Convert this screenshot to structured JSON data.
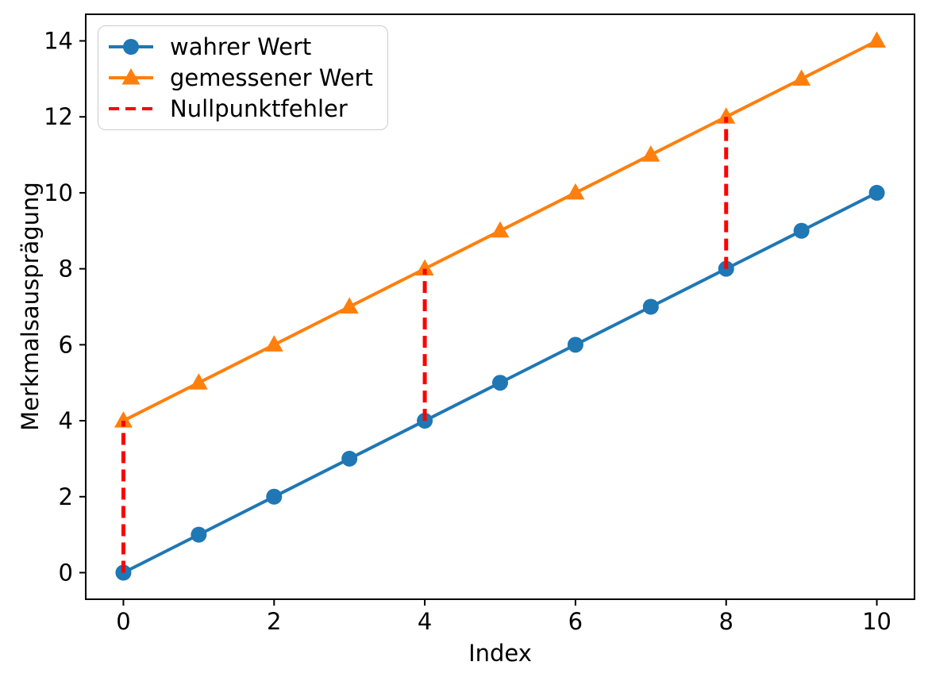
{
  "figure": {
    "background": "#ffffff",
    "text_color": "#000000",
    "spine_color": "#000000"
  },
  "chart_data": {
    "type": "line",
    "title": "",
    "xlabel": "Index",
    "ylabel": "Merkmalsausprägung",
    "xlim": [
      -0.5,
      10.5
    ],
    "ylim": [
      -0.7,
      14.7
    ],
    "xticks": [
      "0",
      "2",
      "4",
      "6",
      "8",
      "10"
    ],
    "xtick_values": [
      0,
      2,
      4,
      6,
      8,
      10
    ],
    "yticks": [
      "0",
      "2",
      "4",
      "6",
      "8",
      "10",
      "12",
      "14"
    ],
    "ytick_values": [
      0,
      2,
      4,
      6,
      8,
      10,
      12,
      14
    ],
    "grid": false,
    "legend_position": "upper left",
    "x": [
      0,
      1,
      2,
      3,
      4,
      5,
      6,
      7,
      8,
      9,
      10
    ],
    "series": [
      {
        "name": "wahrer Wert",
        "values": [
          0,
          1,
          2,
          3,
          4,
          5,
          6,
          7,
          8,
          9,
          10
        ],
        "color": "#1f77b4",
        "marker": "circle",
        "linestyle": "solid"
      },
      {
        "name": "gemessener Wert",
        "values": [
          4,
          5,
          6,
          7,
          8,
          9,
          10,
          11,
          12,
          13,
          14
        ],
        "color": "#ff7f0e",
        "marker": "triangle-up",
        "linestyle": "solid"
      }
    ],
    "annotations": {
      "name": "Nullpunktfehler",
      "type": "vertical-dashed-lines",
      "color": "#ff0000",
      "segments": [
        {
          "x": 0,
          "y_from": 0,
          "y_to": 4
        },
        {
          "x": 4,
          "y_from": 4,
          "y_to": 8
        },
        {
          "x": 8,
          "y_from": 8,
          "y_to": 12
        }
      ]
    },
    "legend": [
      {
        "label": "wahrer Wert",
        "color": "#1f77b4",
        "marker": "circle",
        "linestyle": "solid"
      },
      {
        "label": "gemessener Wert",
        "color": "#ff7f0e",
        "marker": "triangle-up",
        "linestyle": "solid"
      },
      {
        "label": "Nullpunktfehler",
        "color": "#ff0000",
        "marker": "none",
        "linestyle": "dashed"
      }
    ]
  }
}
